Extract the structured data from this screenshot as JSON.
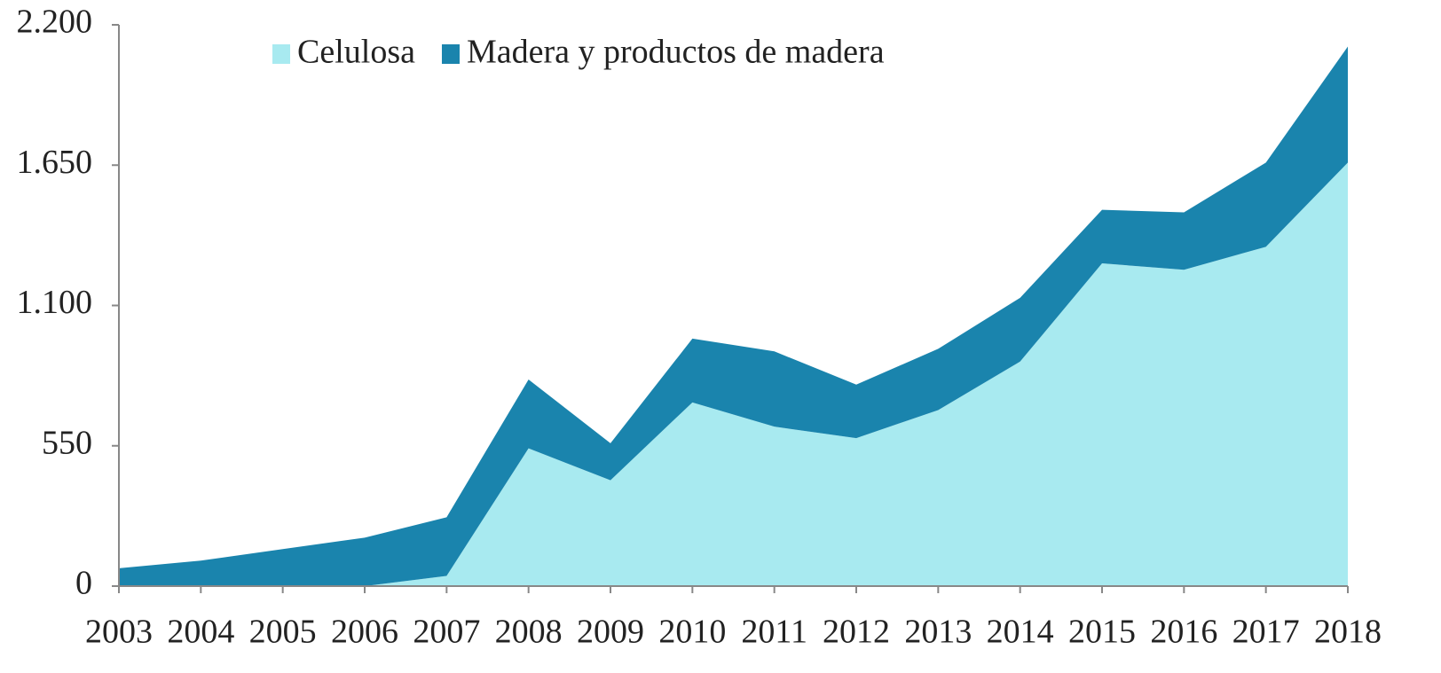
{
  "chart_data": {
    "type": "stacked_area",
    "categories": [
      "2003",
      "2004",
      "2005",
      "2006",
      "2007",
      "2008",
      "2009",
      "2010",
      "2011",
      "2012",
      "2013",
      "2014",
      "2015",
      "2016",
      "2017",
      "2018"
    ],
    "series": [
      {
        "name": "Celulosa",
        "color": "#a8eaf0",
        "values": [
          0,
          0,
          0,
          0,
          40,
          540,
          415,
          720,
          625,
          580,
          690,
          880,
          1265,
          1240,
          1330,
          1660
        ]
      },
      {
        "name": "Madera y productos de madera",
        "color": "#1a84ad",
        "values": [
          70,
          100,
          145,
          190,
          230,
          270,
          145,
          250,
          295,
          210,
          240,
          250,
          210,
          225,
          330,
          455
        ]
      }
    ],
    "ylim": [
      0,
      2200
    ],
    "yticks": [
      0,
      550,
      {
        "value": 1100,
        "label": "1.100"
      },
      {
        "value": 1650,
        "label": "1.650"
      },
      {
        "value": 2200,
        "label": "2.200"
      }
    ],
    "legend": "top"
  }
}
